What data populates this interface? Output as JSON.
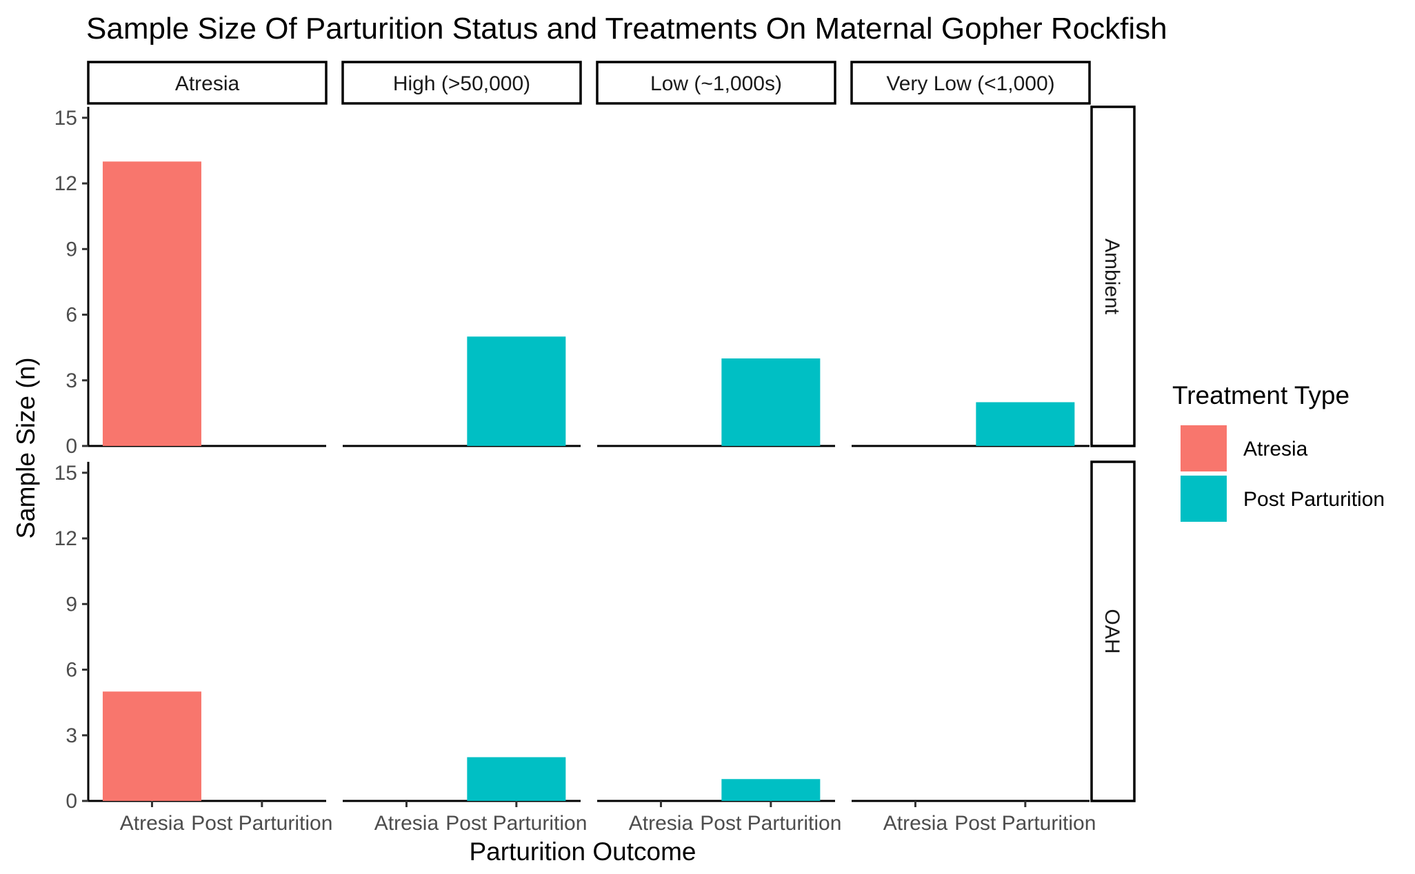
{
  "chart_data": {
    "type": "bar",
    "title": "Sample Size Of Parturition Status and Treatments On Maternal Gopher Rockfish",
    "xlabel": "Parturition Outcome",
    "ylabel": "Sample Size (n)",
    "ylim": [
      0,
      15.5
    ],
    "yticks": [
      0,
      3,
      6,
      9,
      12,
      15
    ],
    "categories": [
      "Atresia",
      "Post Parturition"
    ],
    "facet_columns": [
      "Atresia",
      "High (>50,000)",
      "Low (~1,000s)",
      "Very Low (<1,000)"
    ],
    "facet_rows": [
      "Ambient",
      "OAH"
    ],
    "grid": false,
    "legend": {
      "title": "Treatment Type",
      "position": "right",
      "entries": [
        {
          "name": "Atresia",
          "color": "#F8766D"
        },
        {
          "name": "Post Parturition",
          "color": "#00BFC4"
        }
      ]
    },
    "panels": [
      {
        "row": "Ambient",
        "col": "Atresia",
        "values": [
          13,
          0
        ]
      },
      {
        "row": "Ambient",
        "col": "High (>50,000)",
        "values": [
          0,
          5
        ]
      },
      {
        "row": "Ambient",
        "col": "Low (~1,000s)",
        "values": [
          0,
          4
        ]
      },
      {
        "row": "Ambient",
        "col": "Very Low (<1,000)",
        "values": [
          0,
          2
        ]
      },
      {
        "row": "OAH",
        "col": "Atresia",
        "values": [
          5,
          0
        ]
      },
      {
        "row": "OAH",
        "col": "High (>50,000)",
        "values": [
          0,
          2
        ]
      },
      {
        "row": "OAH",
        "col": "Low (~1,000s)",
        "values": [
          0,
          1
        ]
      },
      {
        "row": "OAH",
        "col": "Very Low (<1,000)",
        "values": [
          0,
          0
        ]
      }
    ]
  }
}
